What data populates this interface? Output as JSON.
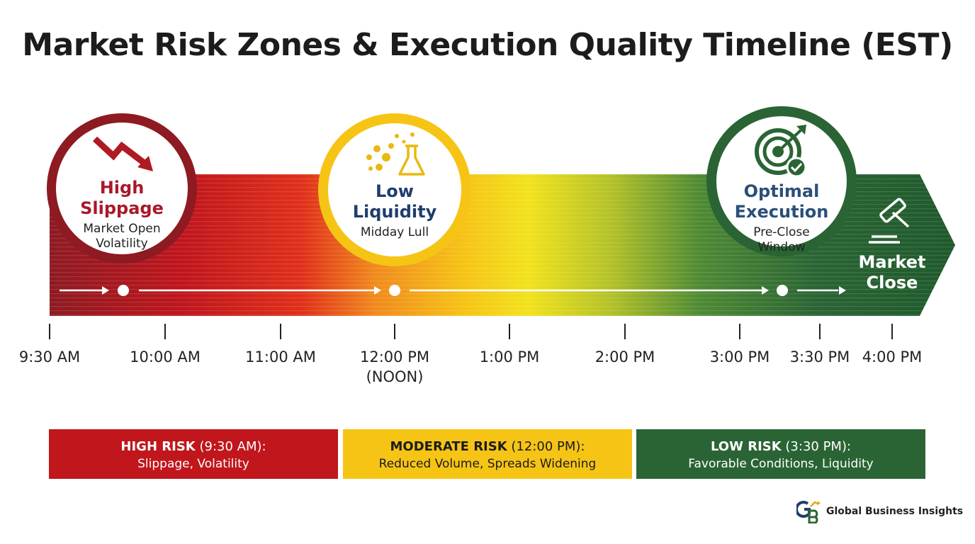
{
  "title": "Market Risk Zones & Execution Quality Timeline (EST)",
  "colors": {
    "red": "#c0161c",
    "dark_red": "#8e1a22",
    "orange": "#f08a1c",
    "yellow": "#f6c415",
    "green": "#2a6434",
    "dark_green": "#1f5a2c"
  },
  "timeline": {
    "ticks": [
      {
        "label": "9:30 AM"
      },
      {
        "label": "10:00 AM"
      },
      {
        "label": "11:00 AM"
      },
      {
        "label": "12:00 PM\n(NOON)"
      },
      {
        "label": "1:00 PM"
      },
      {
        "label": "2:00 PM"
      },
      {
        "label": "3:00 PM"
      },
      {
        "label": "3:30 PM"
      },
      {
        "label": "4:00 PM"
      }
    ]
  },
  "bubbles": [
    {
      "heading": "High\nSlippage",
      "subtext": "Market Open\nVolatility",
      "icon": "down-trend-arrow-icon"
    },
    {
      "heading": "Low\nLiquidity",
      "subtext": "Midday Lull",
      "icon": "flask-bubbles-icon"
    },
    {
      "heading": "Optimal\nExecution",
      "subtext": "Pre-Close\nWindow",
      "icon": "target-check-icon"
    }
  ],
  "market_close": {
    "label": "Market\nClose",
    "icon": "gavel-icon"
  },
  "zones": [
    {
      "name": "HIGH RISK",
      "time": " (9:30 AM):",
      "desc": "Slippage, Volatility"
    },
    {
      "name": "MODERATE RISK",
      "time": " (12:00 PM):",
      "desc": "Reduced Volume, Spreads Widening"
    },
    {
      "name": "LOW RISK",
      "time": " (3:30 PM):",
      "desc": "Favorable Conditions, Liquidity"
    }
  ],
  "brand": {
    "name": "Global Business Insights",
    "logo": "gb-logo-icon"
  }
}
